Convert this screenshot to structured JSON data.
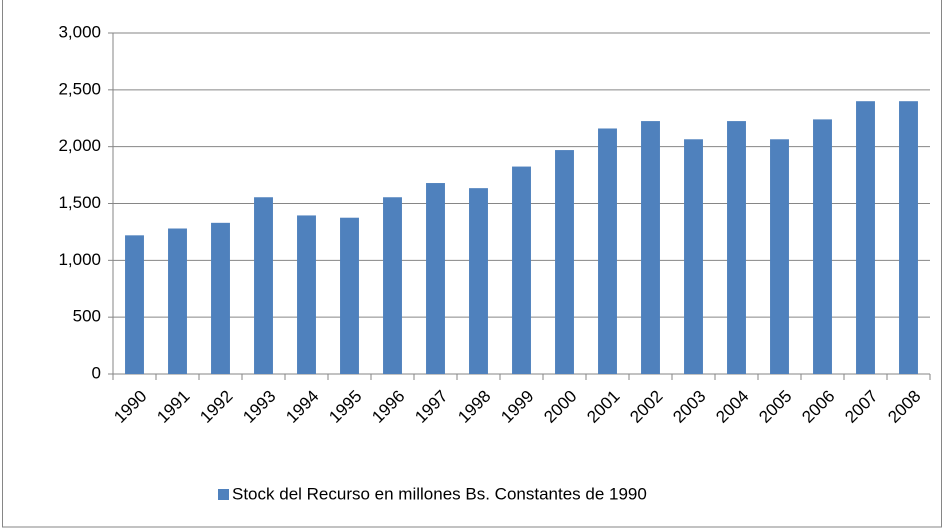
{
  "chart_data": {
    "type": "bar",
    "categories": [
      "1990",
      "1991",
      "1992",
      "1993",
      "1994",
      "1995",
      "1996",
      "1997",
      "1998",
      "1999",
      "2000",
      "2001",
      "2002",
      "2003",
      "2004",
      "2005",
      "2006",
      "2007",
      "2008"
    ],
    "series": [
      {
        "name": "Stock del Recurso en millones Bs. Constantes de 1990",
        "color": "#4f81bd",
        "values": [
          1220,
          1280,
          1330,
          1555,
          1395,
          1375,
          1555,
          1680,
          1635,
          1825,
          1970,
          2160,
          2225,
          2065,
          2225,
          2065,
          2240,
          2400,
          2400
        ]
      }
    ],
    "ylim": [
      0,
      3000
    ],
    "yticks": [
      0,
      500,
      {
        "value": 1000,
        "label": "1,000"
      },
      {
        "value": 1500,
        "label": "1,500"
      },
      {
        "value": 2000,
        "label": "2,000"
      },
      {
        "value": 2500,
        "label": "2,500"
      },
      {
        "value": 3000,
        "label": "3,000"
      }
    ],
    "grid": true,
    "legend": "bottom"
  }
}
